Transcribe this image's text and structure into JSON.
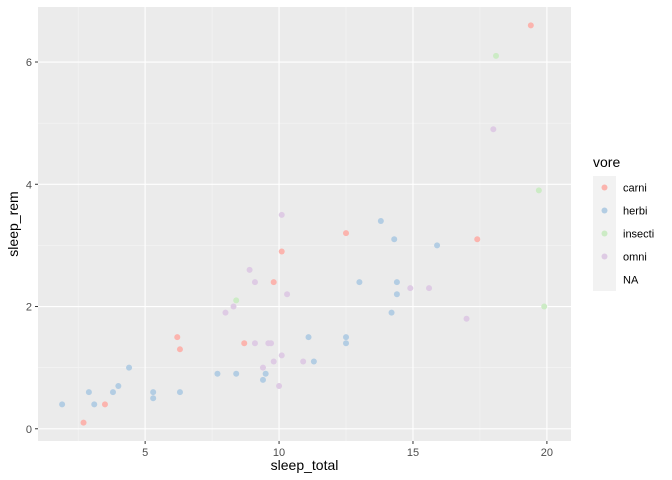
{
  "chart_data": {
    "type": "scatter",
    "title": "",
    "xlabel": "sleep_total",
    "ylabel": "sleep_rem",
    "xlim": [
      1.0,
      20.9
    ],
    "ylim": [
      -0.2,
      6.9
    ],
    "x_ticks": [
      5,
      10,
      15,
      20
    ],
    "y_ticks": [
      0,
      2,
      4,
      6
    ],
    "grid": true,
    "legend": {
      "title": "vore",
      "placement": "right"
    },
    "colors": {
      "panel_bg": "#ebebeb",
      "grid_major": "#ffffff",
      "grid_minor": "#f5f5f5",
      "legend_key_bg": "#f2f2f2"
    },
    "series": [
      {
        "name": "carni",
        "color": "#fbb4ae",
        "points": [
          [
            2.7,
            0.1
          ],
          [
            3.5,
            0.4
          ],
          [
            6.2,
            1.5
          ],
          [
            6.3,
            1.3
          ],
          [
            8.7,
            1.4
          ],
          [
            9.8,
            2.4
          ],
          [
            10.1,
            2.9
          ],
          [
            12.5,
            3.2
          ],
          [
            17.4,
            3.1
          ],
          [
            19.4,
            6.6
          ]
        ]
      },
      {
        "name": "herbi",
        "color": "#b3cde3",
        "points": [
          [
            1.9,
            0.4
          ],
          [
            2.9,
            0.6
          ],
          [
            3.1,
            0.4
          ],
          [
            3.8,
            0.6
          ],
          [
            4.0,
            0.7
          ],
          [
            4.4,
            1.0
          ],
          [
            5.3,
            0.6
          ],
          [
            5.3,
            0.5
          ],
          [
            6.3,
            0.6
          ],
          [
            7.7,
            0.9
          ],
          [
            8.4,
            0.9
          ],
          [
            9.4,
            0.8
          ],
          [
            9.5,
            0.9
          ],
          [
            11.1,
            1.5
          ],
          [
            11.3,
            1.1
          ],
          [
            12.5,
            1.5
          ],
          [
            12.5,
            1.4
          ],
          [
            13.0,
            2.4
          ],
          [
            13.8,
            3.4
          ],
          [
            14.2,
            1.9
          ],
          [
            14.3,
            3.1
          ],
          [
            14.4,
            2.4
          ],
          [
            14.4,
            2.2
          ],
          [
            15.9,
            3.0
          ]
        ]
      },
      {
        "name": "insecti",
        "color": "#ccebc5",
        "points": [
          [
            8.4,
            2.1
          ],
          [
            18.1,
            6.1
          ],
          [
            19.7,
            3.9
          ],
          [
            19.9,
            2.0
          ]
        ]
      },
      {
        "name": "omni",
        "color": "#decbe4",
        "points": [
          [
            8.0,
            1.9
          ],
          [
            8.3,
            2.0
          ],
          [
            8.9,
            2.6
          ],
          [
            9.1,
            1.4
          ],
          [
            9.1,
            2.4
          ],
          [
            9.4,
            1.0
          ],
          [
            9.6,
            1.4
          ],
          [
            9.7,
            1.4
          ],
          [
            9.8,
            1.1
          ],
          [
            10.0,
            0.7
          ],
          [
            10.1,
            1.2
          ],
          [
            10.1,
            3.5
          ],
          [
            10.3,
            2.2
          ],
          [
            10.9,
            1.1
          ],
          [
            14.9,
            2.3
          ],
          [
            15.6,
            2.3
          ],
          [
            17.0,
            1.8
          ],
          [
            18.0,
            4.9
          ]
        ]
      },
      {
        "name": "NA",
        "color": "#f2f2f2",
        "points": []
      }
    ]
  }
}
